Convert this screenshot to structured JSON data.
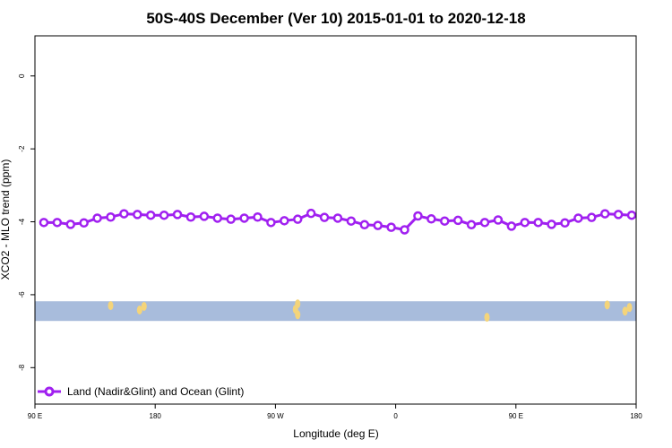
{
  "chart_data": {
    "type": "line",
    "title": "50S-40S December (Ver 10)   2015-01-01 to 2020-12-18",
    "xlabel": "Longitude (deg E)",
    "ylabel": "XCO2 - MLO trend (ppm)",
    "xlim": [
      -90,
      180
    ],
    "ylim": [
      -9,
      1.1
    ],
    "x_ticks": [
      {
        "value": -90,
        "label": "90 E"
      },
      {
        "value": -36,
        "label": "180"
      },
      {
        "value": 18,
        "label": "90 W"
      },
      {
        "value": 72,
        "label": "0"
      },
      {
        "value": 126,
        "label": "90 E"
      },
      {
        "value": 180,
        "label": "180"
      }
    ],
    "y_ticks": [
      {
        "value": 0,
        "label": "0"
      },
      {
        "value": -2,
        "label": "-2"
      },
      {
        "value": -4,
        "label": "-4"
      },
      {
        "value": -6,
        "label": "-6"
      },
      {
        "value": -8,
        "label": "-8"
      }
    ],
    "series": [
      {
        "name": "Land (Nadir&Glint) and Ocean (Glint)",
        "color": "#a020f0",
        "x": [
          -86,
          -80,
          -74,
          -68,
          -62,
          -56,
          -50,
          -44,
          -38,
          -32,
          -26,
          -20,
          -14,
          -8,
          -2,
          4,
          10,
          16,
          22,
          28,
          34,
          40,
          46,
          52,
          58,
          64,
          70,
          76,
          82,
          88,
          94,
          100,
          106,
          112,
          118,
          124,
          130,
          136,
          142,
          148,
          154,
          160,
          166,
          172,
          178
        ],
        "y": [
          -4.02,
          -4.02,
          -4.07,
          -4.03,
          -3.9,
          -3.87,
          -3.78,
          -3.8,
          -3.82,
          -3.82,
          -3.8,
          -3.87,
          -3.85,
          -3.9,
          -3.93,
          -3.9,
          -3.87,
          -4.02,
          -3.97,
          -3.93,
          -3.77,
          -3.88,
          -3.9,
          -3.98,
          -4.08,
          -4.1,
          -4.15,
          -4.22,
          -3.84,
          -3.92,
          -3.98,
          -3.96,
          -4.08,
          -4.02,
          -3.95,
          -4.12,
          -4.02,
          -4.02,
          -4.07,
          -4.03,
          -3.9,
          -3.88,
          -3.78,
          -3.8,
          -3.82
        ]
      }
    ],
    "legend": "bottom-left",
    "grid": false,
    "surface_strip": {
      "y_range": [
        -6.72,
        -6.18
      ],
      "ocean_color": "#a8bcdc",
      "land_color": "#f4d47a",
      "land_spans": [
        {
          "x": -56,
          "y": -6.3
        },
        {
          "x": -43,
          "y": -6.42
        },
        {
          "x": -41,
          "y": -6.32
        },
        {
          "x": 28,
          "y": -6.25
        },
        {
          "x": 28,
          "y": -6.55
        },
        {
          "x": 27,
          "y": -6.4
        },
        {
          "x": 113,
          "y": -6.62
        },
        {
          "x": 167,
          "y": -6.28
        },
        {
          "x": 175,
          "y": -6.45
        },
        {
          "x": 177,
          "y": -6.35
        }
      ]
    }
  }
}
